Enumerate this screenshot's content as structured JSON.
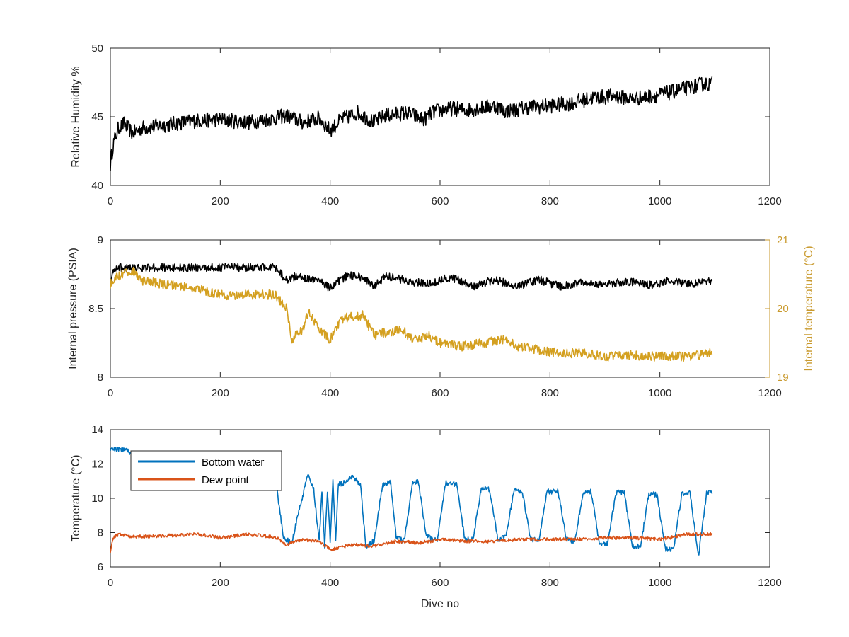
{
  "chart_data": [
    {
      "type": "line",
      "id": "humidity",
      "xlabel": "",
      "ylabel": "Relative Humidity %",
      "xlim": [
        0,
        1200
      ],
      "ylim": [
        40,
        50
      ],
      "xticks": [
        0,
        200,
        400,
        600,
        800,
        1000,
        1200
      ],
      "yticks": [
        40,
        45,
        50
      ],
      "grid": false,
      "series": [
        {
          "color": "#000000",
          "noise": 0.55,
          "x": [
            0,
            5,
            15,
            25,
            40,
            60,
            100,
            150,
            200,
            250,
            300,
            320,
            350,
            380,
            400,
            420,
            450,
            480,
            500,
            540,
            570,
            590,
            620,
            650,
            700,
            720,
            760,
            800,
            840,
            880,
            920,
            950,
            1000,
            1040,
            1080,
            1095
          ],
          "y": [
            41.5,
            43.0,
            44.2,
            44.5,
            43.8,
            44.2,
            44.4,
            44.7,
            44.8,
            44.6,
            44.9,
            45.1,
            44.6,
            44.9,
            44.0,
            44.8,
            45.3,
            44.6,
            45.1,
            45.3,
            44.8,
            45.4,
            45.6,
            45.5,
            45.8,
            45.4,
            45.7,
            45.8,
            46.0,
            46.4,
            46.5,
            46.3,
            46.6,
            47.0,
            47.4,
            47.4
          ]
        }
      ]
    },
    {
      "type": "line",
      "id": "pressure-temperature",
      "xlabel": "",
      "ylabel": "Internal pressure (PSIA)",
      "ylabel_right": "Internal temperature (°C)",
      "xlim": [
        0,
        1200
      ],
      "ylim": [
        8,
        9
      ],
      "ylim_right": [
        19,
        21
      ],
      "xticks": [
        0,
        200,
        400,
        600,
        800,
        1000,
        1200
      ],
      "yticks": [
        8,
        8.5,
        9
      ],
      "yticks_right": [
        19,
        20,
        21
      ],
      "grid": false,
      "series": [
        {
          "color": "#000000",
          "axis": "left",
          "noise": 0.03,
          "x": [
            0,
            5,
            10,
            300,
            320,
            340,
            360,
            380,
            400,
            430,
            460,
            480,
            500,
            540,
            580,
            620,
            660,
            700,
            740,
            780,
            820,
            860,
            900,
            940,
            980,
            1020,
            1060,
            1095
          ],
          "y": [
            8.7,
            8.78,
            8.8,
            8.8,
            8.71,
            8.74,
            8.72,
            8.7,
            8.65,
            8.74,
            8.73,
            8.66,
            8.74,
            8.7,
            8.68,
            8.73,
            8.66,
            8.71,
            8.66,
            8.71,
            8.66,
            8.69,
            8.67,
            8.7,
            8.67,
            8.7,
            8.68,
            8.7
          ]
        },
        {
          "color": "#D4A020",
          "axis": "right",
          "noise": 0.07,
          "x": [
            0,
            10,
            40,
            60,
            100,
            150,
            200,
            220,
            250,
            300,
            320,
            330,
            350,
            360,
            380,
            400,
            420,
            450,
            460,
            480,
            500,
            530,
            550,
            580,
            600,
            640,
            680,
            720,
            740,
            780,
            820,
            860,
            900,
            950,
            1000,
            1050,
            1095
          ],
          "y": [
            20.35,
            20.45,
            20.55,
            20.4,
            20.35,
            20.3,
            20.2,
            20.2,
            20.2,
            20.2,
            20.0,
            19.55,
            19.7,
            19.95,
            19.7,
            19.55,
            19.85,
            19.9,
            19.9,
            19.6,
            19.65,
            19.7,
            19.55,
            19.6,
            19.5,
            19.45,
            19.5,
            19.55,
            19.45,
            19.4,
            19.35,
            19.35,
            19.3,
            19.32,
            19.3,
            19.3,
            19.35
          ]
        }
      ]
    },
    {
      "type": "line",
      "id": "temperature",
      "xlabel": "Dive no",
      "ylabel": "Temperature (°C)",
      "xlim": [
        0,
        1200
      ],
      "ylim": [
        6,
        14
      ],
      "xticks": [
        0,
        200,
        400,
        600,
        800,
        1000,
        1200
      ],
      "yticks": [
        6,
        8,
        10,
        12,
        14
      ],
      "grid": false,
      "legend": "top-left",
      "series": [
        {
          "name": "Bottom water",
          "color": "#0072BD",
          "noise": 0.15,
          "x": [
            0,
            30,
            35,
            300,
            305,
            315,
            330,
            345,
            360,
            370,
            380,
            385,
            390,
            395,
            400,
            405,
            410,
            415,
            425,
            440,
            455,
            465,
            480,
            495,
            510,
            520,
            535,
            550,
            560,
            575,
            595,
            610,
            630,
            645,
            660,
            675,
            690,
            705,
            720,
            735,
            750,
            765,
            780,
            795,
            815,
            830,
            845,
            860,
            875,
            890,
            905,
            920,
            935,
            950,
            965,
            980,
            995,
            1010,
            1025,
            1040,
            1055,
            1070,
            1085,
            1095
          ],
          "y": [
            12.9,
            12.8,
            12.6,
            12.5,
            10.0,
            7.7,
            7.4,
            9.5,
            11.4,
            10.5,
            7.5,
            10.4,
            7.2,
            10.4,
            7.5,
            11.0,
            7.6,
            10.8,
            10.9,
            11.3,
            10.8,
            7.2,
            7.5,
            10.7,
            11.0,
            7.8,
            7.5,
            10.9,
            11.0,
            7.8,
            7.5,
            10.9,
            10.8,
            7.6,
            7.6,
            10.6,
            10.5,
            7.6,
            7.8,
            10.6,
            10.3,
            7.6,
            7.6,
            10.4,
            10.4,
            7.6,
            7.5,
            10.3,
            10.4,
            7.3,
            7.4,
            10.3,
            10.4,
            7.2,
            7.2,
            10.3,
            10.2,
            7.0,
            7.0,
            10.3,
            10.3,
            6.6,
            10.3,
            10.4
          ]
        },
        {
          "name": "Dew point",
          "color": "#D95319",
          "noise": 0.1,
          "x": [
            0,
            5,
            15,
            40,
            80,
            120,
            160,
            200,
            250,
            300,
            320,
            350,
            380,
            400,
            440,
            480,
            520,
            560,
            600,
            650,
            700,
            750,
            800,
            850,
            900,
            950,
            1000,
            1050,
            1095
          ],
          "y": [
            6.9,
            7.7,
            7.9,
            7.75,
            7.8,
            7.85,
            7.9,
            7.7,
            7.9,
            7.75,
            7.3,
            7.6,
            7.5,
            7.0,
            7.3,
            7.2,
            7.5,
            7.4,
            7.6,
            7.5,
            7.5,
            7.6,
            7.6,
            7.6,
            7.7,
            7.7,
            7.6,
            7.9,
            7.9
          ]
        }
      ]
    }
  ]
}
